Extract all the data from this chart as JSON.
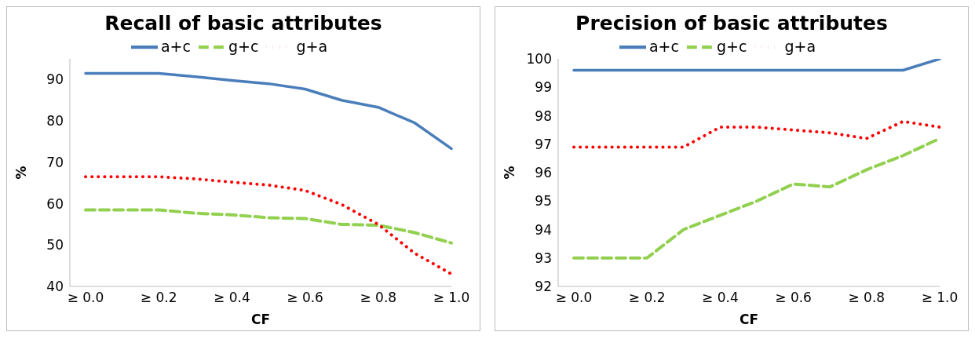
{
  "chart_data": [
    {
      "type": "line",
      "title": "Recall of basic attributes",
      "xlabel": "CF",
      "ylabel": "%",
      "categories": [
        "≥ 0.0",
        null,
        "≥ 0.2",
        null,
        "≥ 0.4",
        null,
        "≥ 0.6",
        null,
        "≥ 0.8",
        null,
        "≥ 1.0"
      ],
      "ylim": [
        40,
        95
      ],
      "yticks": [
        40,
        50,
        60,
        70,
        80,
        90
      ],
      "grid": false,
      "legend": "top",
      "marker": "none",
      "series": [
        {
          "name": "a+c",
          "color": "#4a7ebb",
          "line_style": "solid",
          "values": [
            91.5,
            91.5,
            91.5,
            90.7,
            89.8,
            89,
            87.7,
            85,
            83.3,
            79.5,
            73.3
          ]
        },
        {
          "name": "g+c",
          "color": "#92d050",
          "line_style": "dashed",
          "values": [
            58.5,
            58.5,
            58.5,
            57.7,
            57.3,
            56.6,
            56.4,
            55,
            54.8,
            53,
            50.5
          ]
        },
        {
          "name": "g+a",
          "color": "#ff0000",
          "line_style": "dotted",
          "values": [
            66.5,
            66.5,
            66.5,
            66,
            65.2,
            64.5,
            63.2,
            59.8,
            55,
            48,
            43
          ]
        }
      ]
    },
    {
      "type": "line",
      "title": "Precision of basic attributes",
      "xlabel": "CF",
      "ylabel": "%",
      "categories": [
        "≥ 0.0",
        null,
        "≥ 0.2",
        null,
        "≥ 0.4",
        null,
        "≥ 0.6",
        null,
        "≥ 0.8",
        null,
        "≥ 1.0"
      ],
      "ylim": [
        92,
        100
      ],
      "yticks": [
        92,
        93,
        94,
        95,
        96,
        97,
        98,
        99,
        100
      ],
      "grid": false,
      "legend": "top",
      "marker": "none",
      "series": [
        {
          "name": "a+c",
          "color": "#4a7ebb",
          "line_style": "solid",
          "values": [
            99.6,
            99.6,
            99.6,
            99.6,
            99.6,
            99.6,
            99.6,
            99.6,
            99.6,
            99.6,
            100
          ]
        },
        {
          "name": "g+c",
          "color": "#92d050",
          "line_style": "dashed",
          "values": [
            93,
            93,
            93,
            94,
            94.5,
            95,
            95.6,
            95.5,
            96.1,
            96.6,
            97.2
          ]
        },
        {
          "name": "g+a",
          "color": "#ff0000",
          "line_style": "dotted",
          "values": [
            96.9,
            96.9,
            96.9,
            96.9,
            97.6,
            97.6,
            97.5,
            97.4,
            97.2,
            97.8,
            97.6
          ]
        }
      ]
    }
  ]
}
